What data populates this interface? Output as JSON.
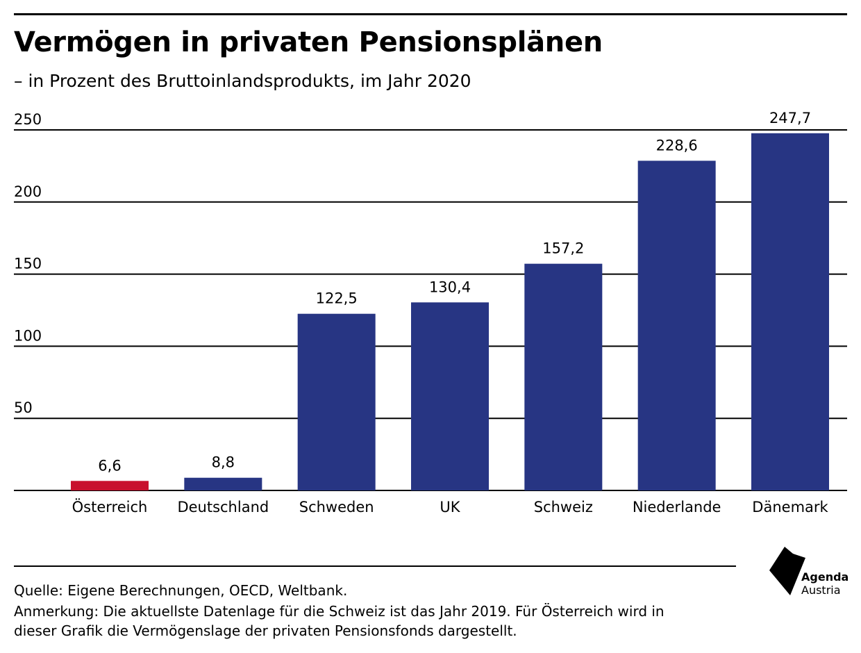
{
  "header": {
    "title": "Vermögen in privaten Pensionsplänen",
    "subtitle": "– in Prozent des Bruttoinlandsprodukts, im Jahr 2020"
  },
  "colors": {
    "highlight": "#c8102e",
    "bars": "#273583",
    "grid": "#000000"
  },
  "chart_data": {
    "type": "bar",
    "categories": [
      "Österreich",
      "Deutschland",
      "Schweden",
      "UK",
      "Schweiz",
      "Niederlande",
      "Dänemark"
    ],
    "values": [
      6.6,
      8.8,
      122.5,
      130.4,
      157.2,
      228.6,
      247.7
    ],
    "value_labels": [
      "6,6",
      "8,8",
      "122,5",
      "130,4",
      "157,2",
      "228,6",
      "247,7"
    ],
    "highlighted_category": "Österreich",
    "yticks": [
      50,
      100,
      150,
      200,
      250
    ],
    "ylim": [
      0,
      250
    ],
    "grid": true,
    "legend": "none"
  },
  "footer": {
    "source": "Quelle: Eigene Berechnungen, OECD, Weltbank.",
    "note_line1": "Anmerkung: Die aktuellste Datenlage für die Schweiz ist das Jahr 2019. Für Österreich wird in",
    "note_line2": "dieser Grafik die Vermögenslage der privaten Pensionsfonds dargestellt."
  },
  "logo": {
    "name": "Agenda",
    "sub": "Austria",
    "icon": "agenda-austria-logo-icon"
  }
}
